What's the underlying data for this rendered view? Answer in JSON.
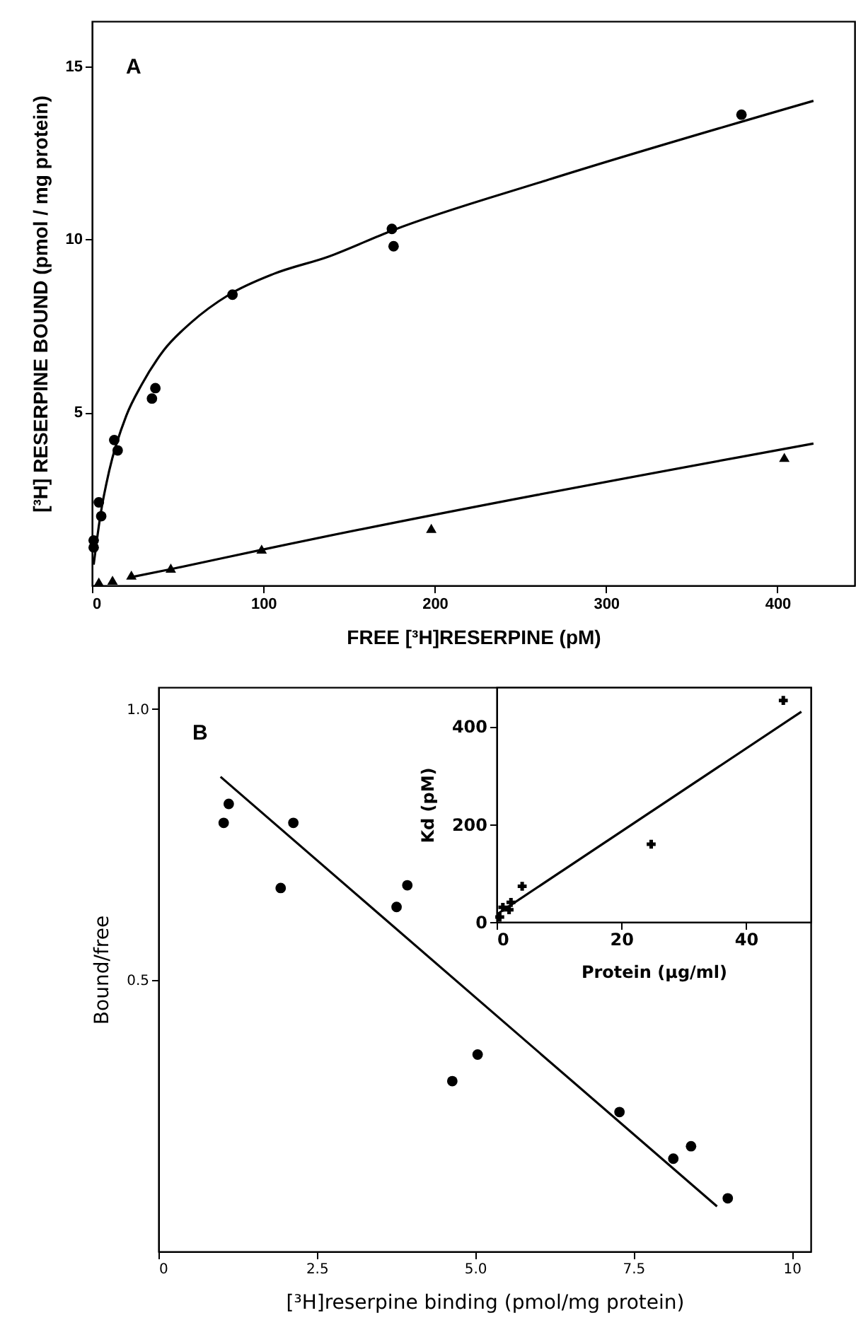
{
  "chart_data": [
    {
      "type": "scatter",
      "xlabel": "FREE [³H]RESERPINE (pM)",
      "ylabel": "[³H] RESERPINE BOUND (pmol / mg protein)",
      "annotations": [
        "A"
      ],
      "xlim": [
        0,
        445
      ],
      "ylim": [
        0,
        16.3
      ],
      "xticks": [
        0,
        100,
        200,
        300,
        400
      ],
      "yticks": [
        5,
        10,
        15
      ],
      "series": [
        {
          "type": "scatter",
          "marker": "circle",
          "color": "#000000",
          "x": [
            1,
            1,
            4,
            5.4,
            13,
            15,
            35,
            37,
            82,
            175,
            176,
            379
          ],
          "values": [
            1.1,
            1.3,
            2.4,
            2.0,
            4.2,
            3.9,
            5.4,
            5.7,
            8.4,
            10.3,
            9.8,
            13.6
          ]
        },
        {
          "type": "scatter",
          "marker": "triangle",
          "color": "#000000",
          "x": [
            4,
            12,
            23,
            46,
            99,
            198,
            404
          ],
          "values": [
            0.1,
            0.15,
            0.3,
            0.5,
            1.05,
            1.65,
            3.7
          ]
        },
        {
          "type": "line",
          "color": "#000000",
          "x": [
            1,
            5,
            10,
            20,
            29,
            42,
            58,
            80,
            106,
            138,
            175,
            265,
            421
          ],
          "values": [
            0.6,
            2.05,
            3.3,
            4.9,
            5.8,
            6.8,
            7.6,
            8.4,
            9.0,
            9.5,
            10.25,
            11.7,
            14.0
          ]
        },
        {
          "type": "line",
          "color": "#000000",
          "x": [
            23,
            46,
            99,
            421
          ],
          "values": [
            0.24,
            0.47,
            1.03,
            4.1
          ]
        }
      ]
    },
    {
      "type": "scatter",
      "xlabel": "[³H]reserpine binding (pmol/mg protein)",
      "ylabel": "Bound/free",
      "annotations": [
        "B"
      ],
      "xlim": [
        0,
        10.3
      ],
      "ylim": [
        0,
        1.04
      ],
      "xticks": [
        0,
        2.5,
        {
          "value": 5,
          "label": "5.0"
        },
        7.5,
        10
      ],
      "yticks": [
        0.5,
        {
          "value": 1,
          "label": "1.0"
        }
      ],
      "series": [
        {
          "type": "scatter",
          "marker": "circle",
          "color": "#000000",
          "x": [
            1.03,
            1.11,
            2.13,
            1.93,
            3.76,
            3.93,
            4.64,
            5.04,
            7.28,
            8.13,
            8.41,
            8.99
          ],
          "values": [
            0.79,
            0.825,
            0.79,
            0.67,
            0.635,
            0.675,
            0.314,
            0.363,
            0.257,
            0.171,
            0.194,
            0.098
          ]
        },
        {
          "type": "line",
          "color": "#000000",
          "x": [
            0.98,
            8.82
          ],
          "values": [
            0.875,
            0.083
          ]
        }
      ]
    },
    {
      "type": "scatter",
      "xlabel": "Protein (µg/ml)",
      "ylabel": "Kd (pM)",
      "xlim": [
        0,
        50.4
      ],
      "ylim": [
        0,
        480
      ],
      "xticks": [
        0,
        20,
        40
      ],
      "yticks": [
        0,
        200,
        400
      ],
      "series": [
        {
          "type": "scatter",
          "marker": "cross",
          "color": "#000000",
          "x": [
            0.5,
            0.8,
            1,
            2,
            2.3,
            4.1,
            24.8,
            46
          ],
          "values": [
            10,
            null,
            30,
            25,
            40,
            73,
            159,
            453
          ]
        },
        {
          "type": "line",
          "color": "#000000",
          "x": [
            0.2,
            48.9
          ],
          "values": [
            17,
            430
          ]
        }
      ]
    }
  ]
}
